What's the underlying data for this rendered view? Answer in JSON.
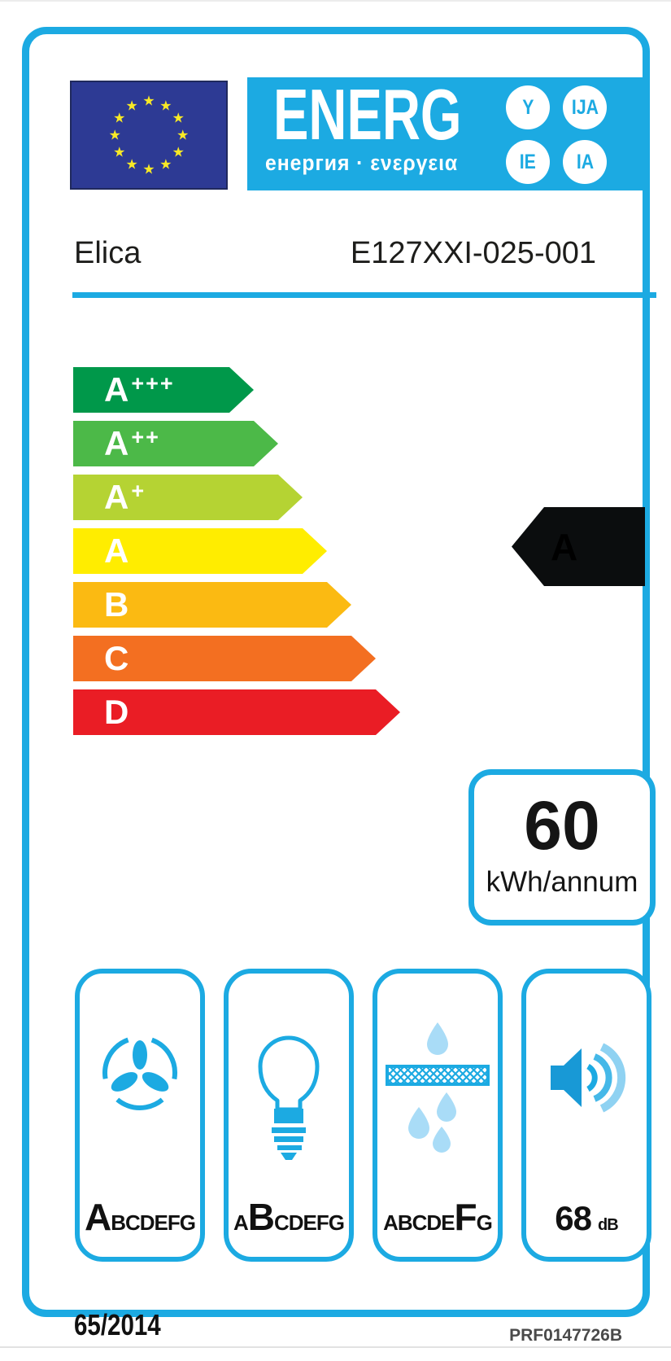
{
  "colors": {
    "accent_blue": "#1caae2",
    "light_blue": "#a9dcf7",
    "flag_blue": "#2d3a94",
    "star_yellow": "#f8e926",
    "arrow_black": "#0b0d0e"
  },
  "header": {
    "energ_title": "ENERG",
    "energ_subtitle": "енергия · ενεργεια",
    "badges": [
      "Y",
      "IJA",
      "IE",
      "IA"
    ],
    "eu_flag": {
      "star_glyph": "★",
      "star_count": 12
    }
  },
  "product": {
    "brand": "Elica",
    "model": "E127XXI-025-001"
  },
  "rating_scale": {
    "classes": [
      {
        "label": "A",
        "suffix": "+++",
        "color": "#00984a"
      },
      {
        "label": "A",
        "suffix": "++",
        "color": "#4cb948"
      },
      {
        "label": "A",
        "suffix": "+",
        "color": "#b5d333"
      },
      {
        "label": "A",
        "suffix": "",
        "color": "#ffed00"
      },
      {
        "label": "B",
        "suffix": "",
        "color": "#fbba12"
      },
      {
        "label": "C",
        "suffix": "",
        "color": "#f36f21"
      },
      {
        "label": "D",
        "suffix": "",
        "color": "#ea1d25"
      }
    ],
    "selected_class": "A"
  },
  "energy": {
    "value": "60",
    "unit": "kWh/annum"
  },
  "metrics": [
    {
      "name": "fan-efficiency",
      "icon": "fan-icon",
      "prefix": "",
      "grade": "A",
      "suffix": "BCDEFG"
    },
    {
      "name": "lighting-efficiency",
      "icon": "lightbulb-icon",
      "prefix": "A",
      "grade": "B",
      "suffix": "CDEFG"
    },
    {
      "name": "grease-filtering-efficiency",
      "icon": "grease-filter-icon",
      "prefix": "ABCDE",
      "grade": "F",
      "suffix": "G"
    },
    {
      "name": "noise-level",
      "icon": "speaker-icon",
      "value": "68",
      "unit": "dB"
    }
  ],
  "footer": {
    "regulation": "65/2014",
    "reference": "PRF0147726B"
  }
}
